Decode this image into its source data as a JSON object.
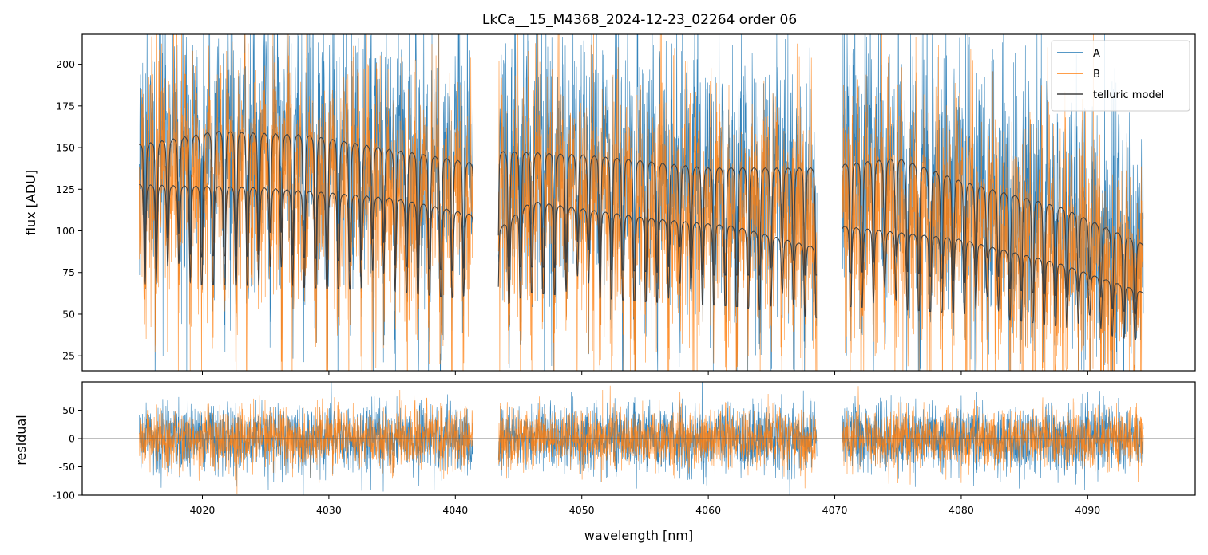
{
  "chart_data": {
    "type": "line",
    "title": "LkCa__15_M4368_2024-12-23_02264  order 06",
    "xlabel": "wavelength [nm]",
    "xlim": [
      4010.5,
      4098.5
    ],
    "x_ticks": [
      4020,
      4030,
      4040,
      4050,
      4060,
      4070,
      4080,
      4090
    ],
    "segments": [
      [
        4015.0,
        4041.4
      ],
      [
        4043.4,
        4068.6
      ],
      [
        4070.6,
        4094.4
      ]
    ],
    "colors": {
      "A": "#1f77b4",
      "B": "#ff7f0e",
      "telluric": "#404040",
      "zero_line": "#555555"
    },
    "legend": {
      "position": "top-right",
      "entries": [
        "A",
        "B",
        "telluric model"
      ]
    },
    "panels": [
      {
        "name": "flux",
        "ylabel": "flux [ADU]",
        "ylim": [
          16,
          218
        ],
        "y_ticks": [
          25,
          50,
          75,
          100,
          125,
          150,
          175,
          200
        ],
        "series": [
          {
            "name": "A",
            "description_values": "dense noisy spectrum around telluric model, approx 60–220",
            "baseline": [
              [
                4015.0,
                152
              ],
              [
                4041.4,
                141
              ],
              [
                4043.4,
                148
              ],
              [
                4068.6,
                138
              ],
              [
                4070.6,
                140
              ],
              [
                4094.4,
                92
              ]
            ],
            "scatter_sd": 38
          },
          {
            "name": "B",
            "baseline": [
              [
                4015.0,
                128
              ],
              [
                4041.4,
                110
              ],
              [
                4043.4,
                101
              ],
              [
                4068.6,
                90
              ],
              [
                4070.6,
                103
              ],
              [
                4094.4,
                63
              ]
            ],
            "scatter_sd": 34
          },
          {
            "name": "telluric model",
            "upper": [
              [
                4015.0,
                152
              ],
              [
                4021,
                160
              ],
              [
                4028,
                158
              ],
              [
                4041.4,
                141
              ],
              [
                4043.4,
                148
              ],
              [
                4050,
                146
              ],
              [
                4060,
                138
              ],
              [
                4068.6,
                138
              ],
              [
                4070.6,
                140
              ],
              [
                4075,
                144
              ],
              [
                4080,
                130
              ],
              [
                4088,
                114
              ],
              [
                4094.4,
                92
              ]
            ],
            "lower": [
              [
                4015.0,
                128
              ],
              [
                4025,
                126
              ],
              [
                4035,
                120
              ],
              [
                4041.4,
                110
              ],
              [
                4043.4,
                101
              ],
              [
                4046,
                118
              ],
              [
                4055,
                108
              ],
              [
                4062,
                103
              ],
              [
                4068.6,
                90
              ],
              [
                4070.6,
                103
              ],
              [
                4080,
                95
              ],
              [
                4088,
                80
              ],
              [
                4094.4,
                63
              ]
            ],
            "line_spacing_nm": 0.9
          }
        ]
      },
      {
        "name": "residual",
        "ylabel": "residual",
        "ylim": [
          -100,
          100
        ],
        "y_ticks": [
          -100,
          -50,
          0,
          50
        ],
        "series": [
          {
            "name": "A",
            "scatter_sd": 30
          },
          {
            "name": "B",
            "scatter_sd": 26
          }
        ]
      }
    ]
  }
}
